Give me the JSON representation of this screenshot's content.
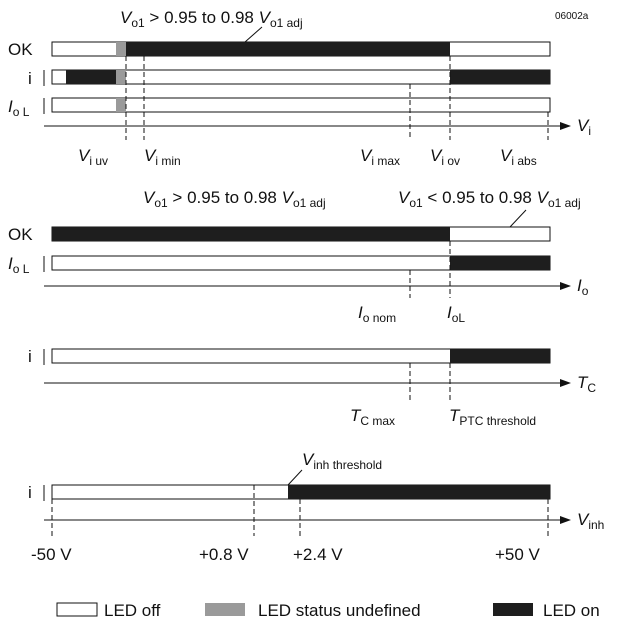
{
  "figure_id": "06002a",
  "panel1": {
    "top_label": {
      "main": "V",
      "sub1": "o1",
      "mid": " > 0.95 to 0.98 ",
      "main2": "V",
      "sub2": "o1 adj"
    },
    "rows": {
      "ok": "OK",
      "i": "i",
      "iol_main": "I",
      "iol_sub": "o L"
    },
    "axis": {
      "main": "V",
      "sub": "i"
    },
    "ticks": [
      {
        "main": "V",
        "sub": "i uv"
      },
      {
        "main": "V",
        "sub": "i min"
      },
      {
        "main": "V",
        "sub": "i max"
      },
      {
        "main": "V",
        "sub": "i ov"
      },
      {
        "main": "V",
        "sub": "i abs"
      }
    ]
  },
  "panel2": {
    "top_left": {
      "main": "V",
      "sub1": "o1",
      "mid": " > 0.95 to 0.98 ",
      "main2": "V",
      "sub2": "o1 adj"
    },
    "top_right": {
      "main": "V",
      "sub1": "o1",
      "mid": " < 0.95 to 0.98 ",
      "main2": "V",
      "sub2": "o1 adj"
    },
    "rows": {
      "ok": "OK",
      "iol_main": "I",
      "iol_sub": "o L"
    },
    "axis": {
      "main": "I",
      "sub": "o"
    },
    "ticks": [
      {
        "main": "I",
        "sub": "o nom"
      },
      {
        "main": "I",
        "sub": "oL"
      }
    ]
  },
  "panel3": {
    "rows": {
      "i": "i"
    },
    "axis": {
      "main": "T",
      "sub": "C"
    },
    "ticks": [
      {
        "main": "T",
        "sub": "C max"
      },
      {
        "main": "T",
        "sub": "PTC threshold"
      }
    ]
  },
  "panel4": {
    "rows": {
      "i": "i"
    },
    "top_label": {
      "main": "V",
      "sub": "inh threshold"
    },
    "axis": {
      "main": "V",
      "sub": "inh"
    },
    "ticks": [
      "-50 V",
      "+0.8 V",
      "+2.4 V",
      "+50 V"
    ]
  },
  "legend": {
    "off": "LED off",
    "undefined": "LED status undefined",
    "on": "LED on"
  }
}
